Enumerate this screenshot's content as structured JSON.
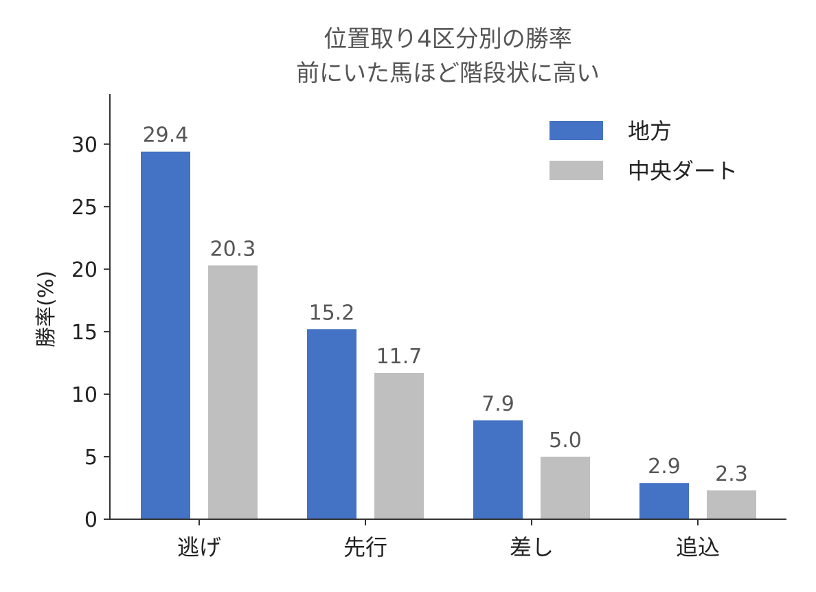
{
  "chart_data": {
    "type": "bar",
    "title_lines": [
      "位置取り4区分別の勝率",
      "前にいた馬ほど階段状に高い"
    ],
    "xlabel": "",
    "ylabel": "勝率(%)",
    "categories": [
      "逃げ",
      "先行",
      "差し",
      "追込"
    ],
    "series": [
      {
        "name": "地方",
        "color": "#4472c4",
        "values": [
          29.4,
          15.2,
          7.9,
          2.9
        ],
        "labels": [
          "29.4",
          "15.2",
          "7.9",
          "2.9"
        ]
      },
      {
        "name": "中央ダート",
        "color": "#bfbfbf",
        "values": [
          20.3,
          11.7,
          5.0,
          2.3
        ],
        "labels": [
          "20.3",
          "11.7",
          "5.0",
          "2.3"
        ]
      }
    ],
    "yticks": [
      0,
      5,
      10,
      15,
      20,
      25,
      30
    ],
    "ytick_labels": [
      "0",
      "5",
      "10",
      "15",
      "20",
      "25",
      "30"
    ],
    "ylim": [
      0,
      34
    ],
    "grid": false,
    "legend_position": "top-right"
  }
}
